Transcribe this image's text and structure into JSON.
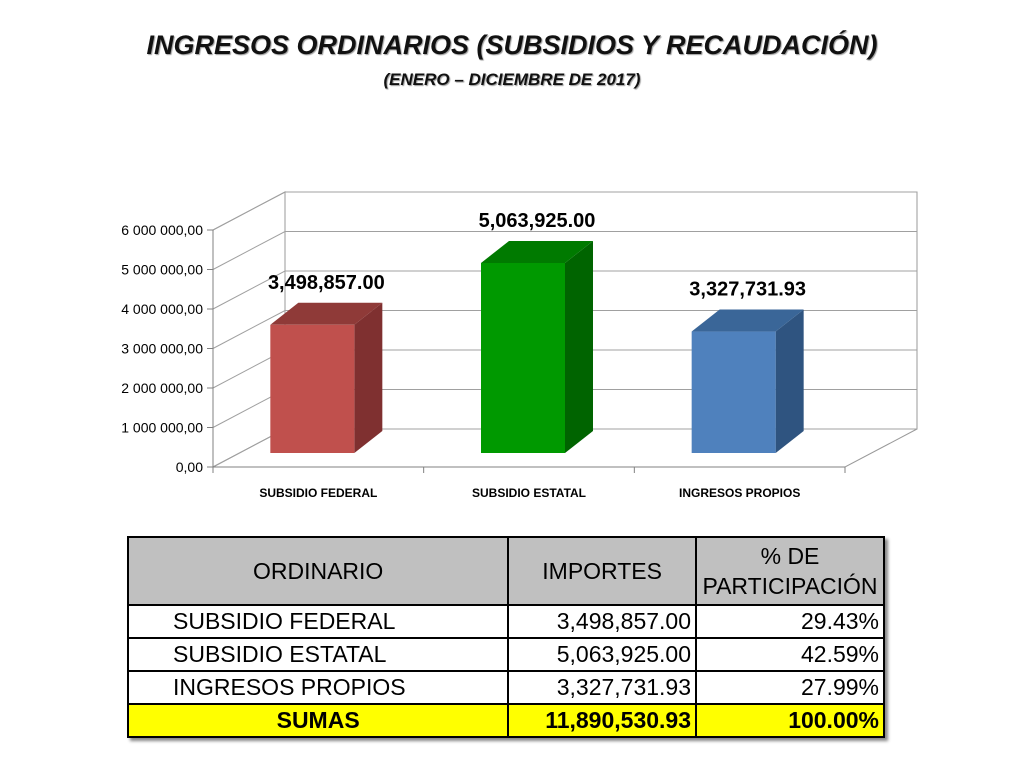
{
  "header": {
    "title": "INGRESOS ORDINARIOS (SUBSIDIOS Y RECAUDACIÓN)",
    "subtitle": "(ENERO – DICIEMBRE DE 2017)"
  },
  "chart_data": {
    "type": "bar",
    "categories": [
      "SUBSIDIO FEDERAL",
      "SUBSIDIO ESTATAL",
      "INGRESOS PROPIOS"
    ],
    "values": [
      3498857.0,
      5063925.0,
      3327731.93
    ],
    "data_labels": [
      "3,498,857.00",
      "5,063,925.00",
      "3,327,731.93"
    ],
    "colors": [
      "#c0504d",
      "#009900",
      "#4f81bd"
    ],
    "side_colors": [
      "#7f3030",
      "#006400",
      "#2f5480"
    ],
    "top_colors": [
      "#8f3a38",
      "#007a00",
      "#3a6698"
    ],
    "ylim": [
      0,
      6000000
    ],
    "yticks": [
      0,
      1000000,
      2000000,
      3000000,
      4000000,
      5000000,
      6000000
    ],
    "ytick_labels": [
      "0,00",
      "1 000 000,00",
      "2 000 000,00",
      "3 000 000,00",
      "4 000 000,00",
      "5 000 000,00",
      "6 000 000,00"
    ],
    "grid": true,
    "style": "3d"
  },
  "table": {
    "headers": [
      "ORDINARIO",
      "IMPORTES",
      "% DE PARTICIPACIÓN"
    ],
    "rows": [
      [
        "SUBSIDIO FEDERAL",
        "3,498,857.00",
        "29.43%"
      ],
      [
        "SUBSIDIO ESTATAL",
        "5,063,925.00",
        "42.59%"
      ],
      [
        "INGRESOS  PROPIOS",
        "3,327,731.93",
        "27.99%"
      ]
    ],
    "total": [
      "SUMAS",
      "11,890,530.93",
      "100.00%"
    ]
  }
}
